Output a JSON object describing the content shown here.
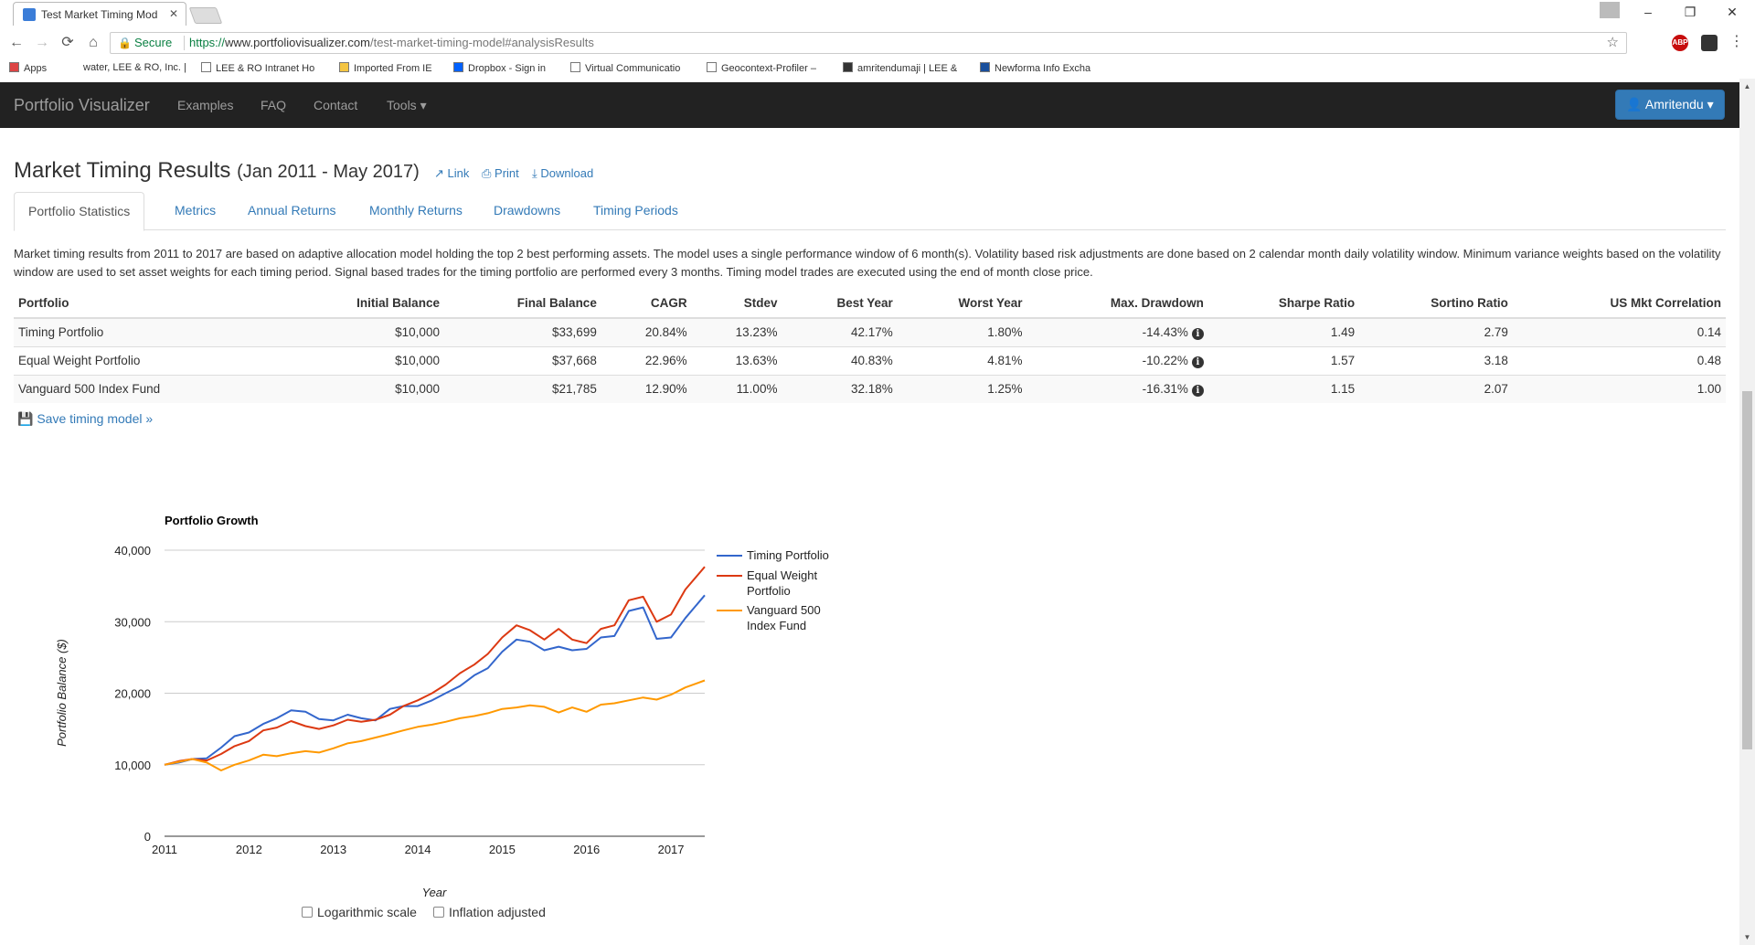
{
  "browser": {
    "tab_title": "Test Market Timing Mod",
    "close_glyph": "✕",
    "secure_label": "Secure",
    "url_scheme": "https://",
    "url_host": "www.portfoliovisualizer.com",
    "url_path": "/test-market-timing-model#analysisResults",
    "bookmarks": [
      {
        "label": "Apps",
        "icon": "apps-grid-icon"
      },
      {
        "label": "water, LEE & RO, Inc. |",
        "icon": ""
      },
      {
        "label": "LEE & RO Intranet Ho",
        "icon": "page-icon"
      },
      {
        "label": "Imported From IE",
        "icon": "folder-icon"
      },
      {
        "label": "Dropbox - Sign in",
        "icon": "dropbox-icon"
      },
      {
        "label": "Virtual Communicatio",
        "icon": "page-icon"
      },
      {
        "label": "Geocontext-Profiler –",
        "icon": "globe-icon"
      },
      {
        "label": "amritendumaji | LEE &",
        "icon": "hash-icon"
      },
      {
        "label": "Newforma Info Excha",
        "icon": "newforma-icon"
      }
    ],
    "ext_badge": "ABP"
  },
  "navbar": {
    "brand": "Portfolio Visualizer",
    "links": [
      "Examples",
      "FAQ",
      "Contact",
      "Tools ▾"
    ],
    "user": "Amritendu ▾"
  },
  "page": {
    "title": "Market Timing Results",
    "period": "(Jan 2011 - May 2017)",
    "actions": [
      "Link",
      "Print",
      "Download"
    ],
    "tabs": [
      "Portfolio Statistics",
      "Metrics",
      "Annual Returns",
      "Monthly Returns",
      "Drawdowns",
      "Timing Periods"
    ],
    "description": "Market timing results from 2011 to 2017 are based on adaptive allocation model holding the top 2 best performing assets. The model uses a single performance window of 6 month(s). Volatility based risk adjustments are done based on 2 calendar month daily volatility window. Minimum variance weights based on the volatility window are used to set asset weights for each timing period. Signal based trades for the timing portfolio are performed every 3 months. Timing model trades are executed using the end of month close price.",
    "save_link": "Save timing model »"
  },
  "table": {
    "headers": [
      "Portfolio",
      "Initial Balance",
      "Final Balance",
      "CAGR",
      "Stdev",
      "Best Year",
      "Worst Year",
      "Max. Drawdown",
      "Sharpe Ratio",
      "Sortino Ratio",
      "US Mkt Correlation"
    ],
    "rows": [
      [
        "Timing Portfolio",
        "$10,000",
        "$33,699",
        "20.84%",
        "13.23%",
        "42.17%",
        "1.80%",
        "-14.43%",
        "1.49",
        "2.79",
        "0.14"
      ],
      [
        "Equal Weight Portfolio",
        "$10,000",
        "$37,668",
        "22.96%",
        "13.63%",
        "40.83%",
        "4.81%",
        "-10.22%",
        "1.57",
        "3.18",
        "0.48"
      ],
      [
        "Vanguard 500 Index Fund",
        "$10,000",
        "$21,785",
        "12.90%",
        "11.00%",
        "32.18%",
        "1.25%",
        "-16.31%",
        "1.15",
        "2.07",
        "1.00"
      ]
    ]
  },
  "controls": {
    "log_scale": "Logarithmic scale",
    "inflation": "Inflation adjusted"
  },
  "chart_data": {
    "type": "line",
    "title": "Portfolio Growth",
    "xlabel": "Year",
    "ylabel": "Portfolio Balance ($)",
    "ylim": [
      0,
      40000
    ],
    "yticks": [
      0,
      10000,
      20000,
      30000,
      40000
    ],
    "ytick_labels": [
      "0",
      "10,000",
      "20,000",
      "30,000",
      "40,000"
    ],
    "xlim": [
      2011,
      2017.4
    ],
    "xticks": [
      2011,
      2012,
      2013,
      2014,
      2015,
      2016,
      2017
    ],
    "legend_position": "right",
    "grid": true,
    "series": [
      {
        "name": "Timing Portfolio",
        "color": "#3366cc",
        "x": [
          2011.0,
          2011.17,
          2011.33,
          2011.5,
          2011.67,
          2011.83,
          2012.0,
          2012.17,
          2012.33,
          2012.5,
          2012.67,
          2012.83,
          2013.0,
          2013.17,
          2013.33,
          2013.5,
          2013.67,
          2013.83,
          2014.0,
          2014.17,
          2014.33,
          2014.5,
          2014.67,
          2014.83,
          2015.0,
          2015.17,
          2015.33,
          2015.5,
          2015.67,
          2015.83,
          2016.0,
          2016.17,
          2016.33,
          2016.5,
          2016.67,
          2016.83,
          2017.0,
          2017.17,
          2017.4
        ],
        "y": [
          10000,
          10300,
          10800,
          10900,
          12400,
          14000,
          14500,
          15700,
          16500,
          17600,
          17400,
          16400,
          16200,
          17000,
          16500,
          16200,
          17800,
          18200,
          18200,
          19000,
          20000,
          21000,
          22500,
          23500,
          25800,
          27500,
          27200,
          26000,
          26500,
          26000,
          26200,
          27800,
          28000,
          31500,
          32000,
          27600,
          27800,
          30500,
          33699
        ]
      },
      {
        "name": "Equal Weight Portfolio",
        "color": "#dc3912",
        "x": [
          2011.0,
          2011.17,
          2011.33,
          2011.5,
          2011.67,
          2011.83,
          2012.0,
          2012.17,
          2012.33,
          2012.5,
          2012.67,
          2012.83,
          2013.0,
          2013.17,
          2013.33,
          2013.5,
          2013.67,
          2013.83,
          2014.0,
          2014.17,
          2014.33,
          2014.5,
          2014.67,
          2014.83,
          2015.0,
          2015.17,
          2015.33,
          2015.5,
          2015.67,
          2015.83,
          2016.0,
          2016.17,
          2016.33,
          2016.5,
          2016.67,
          2016.83,
          2017.0,
          2017.17,
          2017.4
        ],
        "y": [
          10000,
          10500,
          10800,
          10600,
          11500,
          12600,
          13300,
          14800,
          15200,
          16100,
          15400,
          15000,
          15500,
          16300,
          16000,
          16300,
          17000,
          18200,
          19000,
          20000,
          21200,
          22800,
          24000,
          25500,
          27800,
          29500,
          28800,
          27500,
          29000,
          27500,
          27000,
          29000,
          29500,
          33000,
          33500,
          30000,
          31000,
          34500,
          37668
        ]
      },
      {
        "name": "Vanguard 500 Index Fund",
        "color": "#ff9900",
        "x": [
          2011.0,
          2011.17,
          2011.33,
          2011.5,
          2011.67,
          2011.83,
          2012.0,
          2012.17,
          2012.33,
          2012.5,
          2012.67,
          2012.83,
          2013.0,
          2013.17,
          2013.33,
          2013.5,
          2013.67,
          2013.83,
          2014.0,
          2014.17,
          2014.33,
          2014.5,
          2014.67,
          2014.83,
          2015.0,
          2015.17,
          2015.33,
          2015.5,
          2015.67,
          2015.83,
          2016.0,
          2016.17,
          2016.33,
          2016.5,
          2016.67,
          2016.83,
          2017.0,
          2017.17,
          2017.4
        ],
        "y": [
          10000,
          10400,
          10800,
          10300,
          9200,
          10000,
          10600,
          11400,
          11200,
          11600,
          11900,
          11700,
          12300,
          13000,
          13300,
          13800,
          14300,
          14800,
          15300,
          15600,
          16000,
          16500,
          16800,
          17200,
          17800,
          18000,
          18300,
          18100,
          17300,
          18000,
          17400,
          18400,
          18600,
          19000,
          19400,
          19100,
          19800,
          20800,
          21785
        ]
      }
    ]
  }
}
